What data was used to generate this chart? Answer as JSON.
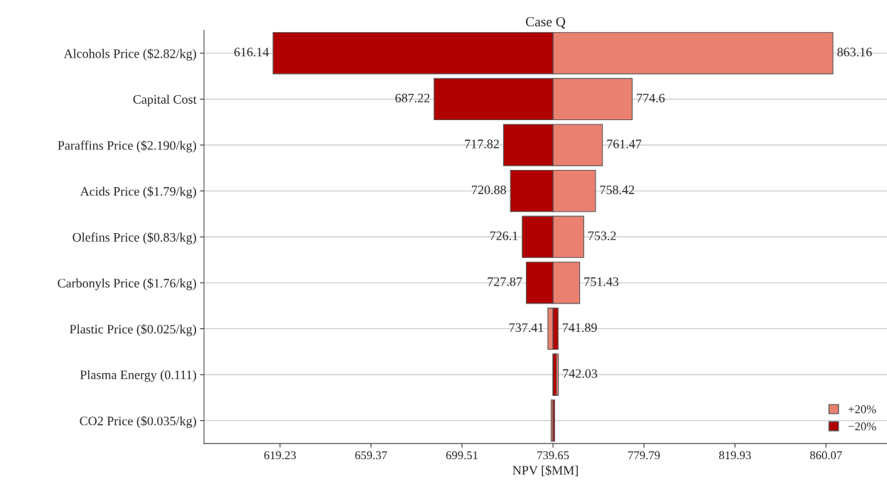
{
  "chart_data": {
    "type": "bar",
    "orientation": "horizontal",
    "title": "Case Q",
    "xlabel": "NPV [$MM]",
    "categories": [
      "Alcohols Price ($2.82/kg)",
      "Capital Cost",
      "Paraffins Price ($2.190/kg)",
      "Acids Price ($1.79/kg)",
      "Olefins Price ($0.83/kg)",
      "Carbonyls Price ($1.76/kg)",
      "Plastic Price ($0.025/kg)",
      "Plasma Energy (0.111)",
      "CO2 Price ($0.035/kg)"
    ],
    "series": [
      {
        "name": "+20%",
        "color": "#ea8070",
        "base": [
          739.65,
          739.65,
          739.65,
          739.65,
          739.65,
          739.65,
          739.65,
          739.65,
          739.65
        ],
        "values": [
          123.51,
          34.95,
          21.82,
          18.77,
          13.55,
          11.78,
          -2.24,
          2.38,
          -0.8
        ],
        "value_labels": [
          "863.16",
          "774.6",
          "761.47",
          "758.42",
          "753.2",
          "751.43",
          "737.41",
          "742.03",
          null
        ]
      },
      {
        "name": "−20%",
        "color": "#b00000",
        "base": [
          739.65,
          739.65,
          739.65,
          739.65,
          739.65,
          739.65,
          739.65,
          739.65,
          739.65
        ],
        "values": [
          -123.51,
          -52.43,
          -21.83,
          -18.77,
          -13.55,
          -11.78,
          2.24,
          1.5,
          0.7
        ],
        "value_labels": [
          "616.14",
          "687.22",
          "717.82",
          "720.88",
          "726.1",
          "727.87",
          "741.89",
          null,
          null
        ]
      }
    ],
    "xlim": [
      585.7,
      887
    ],
    "xticks": [
      619.23,
      659.37,
      699.51,
      739.65,
      779.79,
      819.93,
      860.07
    ],
    "grid": "y",
    "legend": "bottom right"
  }
}
